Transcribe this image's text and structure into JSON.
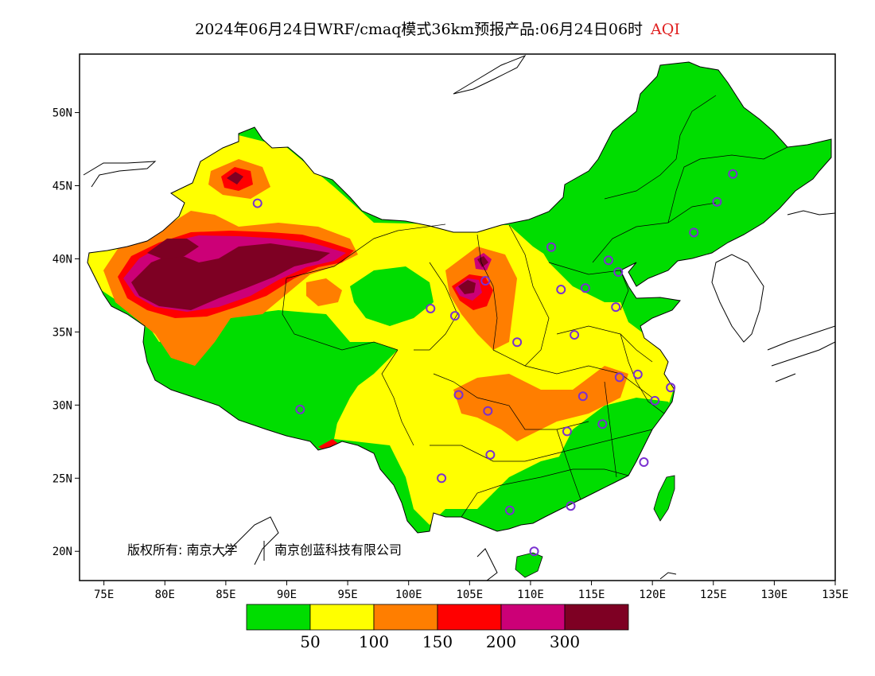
{
  "title": {
    "main": "2024年06月24日WRF/cmaq模式36km预报产品:06月24日06时",
    "variable": "AQI"
  },
  "map": {
    "lon_range": [
      73,
      135
    ],
    "lat_range": [
      18,
      54
    ],
    "lat_ticks": [
      "20N",
      "25N",
      "30N",
      "35N",
      "40N",
      "45N",
      "50N"
    ],
    "lon_ticks": [
      "75E",
      "80E",
      "85E",
      "90E",
      "95E",
      "100E",
      "105E",
      "110E",
      "115E",
      "120E",
      "125E",
      "130E",
      "135E"
    ],
    "copyright": "版权所有: 南京大学",
    "copyright2": "南京创蓝科技有限公司"
  },
  "legend": {
    "colors": [
      "#00dd00",
      "#ffff00",
      "#ff7e00",
      "#ff0000",
      "#cc0077",
      "#7e0023"
    ],
    "labels": [
      "50",
      "100",
      "150",
      "200",
      "300"
    ]
  },
  "colors": {
    "good": "#00dd00",
    "moderate": "#ffff00",
    "unhealthy_sensitive": "#ff7e00",
    "unhealthy": "#ff0000",
    "very_unhealthy": "#cc0077",
    "hazardous": "#7e0023",
    "station_ring": "#7a30d0"
  }
}
